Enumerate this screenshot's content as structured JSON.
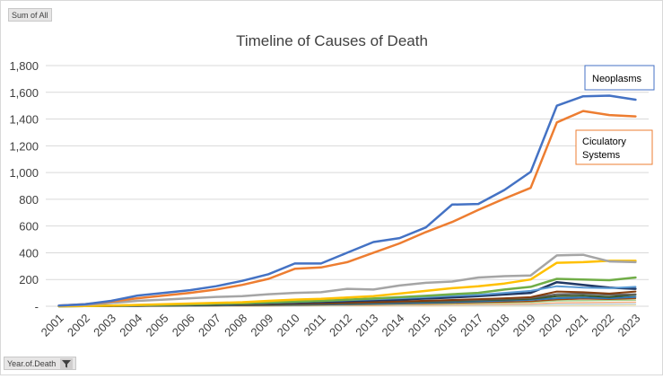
{
  "field_buttons": {
    "values_field": "Sum of All",
    "axis_field": "Year.of.Death"
  },
  "icons": {
    "filter": "filter-icon"
  },
  "colors": {
    "neoplasms": "#4472c4",
    "circulatory": "#ed7d31",
    "gray": "#a5a5a5",
    "yellow": "#ffc000",
    "green": "#70ad47",
    "lightblue": "#5b9bd5",
    "navy": "#203864",
    "brown": "#843c0c",
    "darkgray": "#636363",
    "darkgreen": "#375623",
    "teal": "#2e75b6"
  },
  "chart_data": {
    "type": "line",
    "title": "Timeline of Causes of Death",
    "xlabel": "",
    "ylabel": "",
    "ylim": [
      0,
      1800
    ],
    "ytick_step": 200,
    "ytick_labels": [
      "-",
      "200",
      "400",
      "600",
      "800",
      "1,000",
      "1,200",
      "1,400",
      "1,600",
      "1,800"
    ],
    "grid": true,
    "categories": [
      "2001",
      "2002",
      "2003",
      "2004",
      "2005",
      "2006",
      "2007",
      "2008",
      "2009",
      "2010",
      "2011",
      "2012",
      "2013",
      "2014",
      "2015",
      "2016",
      "2017",
      "2018",
      "2019",
      "2020",
      "2021",
      "2022",
      "2023"
    ],
    "annotations": [
      {
        "text": "Neoplasms",
        "series": "neoplasms"
      },
      {
        "text": "Ciculatory Systems",
        "series": "circulatory"
      }
    ],
    "series": [
      {
        "key": "neoplasms",
        "color": "#4472c4",
        "width": 2.5,
        "values": [
          5,
          15,
          40,
          80,
          100,
          120,
          150,
          190,
          240,
          320,
          320,
          400,
          480,
          510,
          590,
          760,
          765,
          870,
          1005,
          1500,
          1570,
          1575,
          1545
        ]
      },
      {
        "key": "circulatory",
        "color": "#ed7d31",
        "width": 2.5,
        "values": [
          5,
          15,
          35,
          60,
          80,
          100,
          125,
          160,
          205,
          280,
          290,
          330,
          400,
          470,
          555,
          630,
          720,
          805,
          885,
          1375,
          1460,
          1430,
          1420
        ]
      },
      {
        "key": "gray",
        "color": "#a5a5a5",
        "width": 2.5,
        "values": [
          5,
          10,
          25,
          40,
          50,
          60,
          70,
          75,
          90,
          100,
          105,
          130,
          125,
          155,
          175,
          185,
          215,
          225,
          230,
          380,
          385,
          335,
          330
        ]
      },
      {
        "key": "yellow",
        "color": "#ffc000",
        "width": 2.5,
        "values": [
          0,
          2,
          5,
          10,
          15,
          20,
          25,
          30,
          40,
          50,
          55,
          65,
          75,
          95,
          115,
          135,
          150,
          170,
          200,
          325,
          330,
          340,
          340
        ]
      },
      {
        "key": "green",
        "color": "#70ad47",
        "width": 2.5,
        "values": [
          0,
          2,
          5,
          8,
          10,
          14,
          18,
          22,
          28,
          34,
          40,
          50,
          58,
          68,
          78,
          90,
          100,
          125,
          145,
          205,
          200,
          195,
          215
        ]
      },
      {
        "key": "lightblue",
        "color": "#5b9bd5",
        "width": 2,
        "values": [
          0,
          2,
          4,
          7,
          10,
          13,
          17,
          21,
          26,
          32,
          38,
          45,
          52,
          60,
          68,
          78,
          85,
          100,
          115,
          150,
          140,
          135,
          145
        ]
      },
      {
        "key": "navy",
        "color": "#203864",
        "width": 2.5,
        "values": [
          0,
          2,
          4,
          6,
          8,
          11,
          14,
          18,
          22,
          27,
          32,
          38,
          44,
          50,
          58,
          66,
          75,
          88,
          100,
          180,
          160,
          140,
          130
        ]
      },
      {
        "key": "brown",
        "color": "#843c0c",
        "width": 2,
        "values": [
          0,
          1,
          3,
          5,
          7,
          9,
          11,
          14,
          17,
          20,
          23,
          27,
          31,
          36,
          41,
          47,
          53,
          60,
          68,
          110,
          105,
          95,
          110
        ]
      },
      {
        "key": "darkgray",
        "color": "#636363",
        "width": 2,
        "values": [
          0,
          1,
          2,
          4,
          6,
          8,
          10,
          12,
          15,
          18,
          21,
          25,
          29,
          33,
          38,
          43,
          48,
          55,
          62,
          90,
          95,
          85,
          90
        ]
      },
      {
        "key": "darkgreen",
        "color": "#375623",
        "width": 2,
        "values": [
          0,
          1,
          2,
          3,
          5,
          7,
          9,
          11,
          13,
          16,
          19,
          22,
          26,
          30,
          34,
          39,
          44,
          50,
          56,
          75,
          80,
          70,
          85
        ]
      },
      {
        "key": "teal",
        "color": "#2e75b6",
        "width": 2,
        "values": [
          0,
          1,
          2,
          3,
          4,
          5,
          6,
          8,
          10,
          12,
          14,
          17,
          20,
          23,
          27,
          31,
          36,
          42,
          48,
          60,
          65,
          60,
          70
        ]
      },
      {
        "key": "olive",
        "color": "#9e480e",
        "width": 1.5,
        "values": [
          0,
          0,
          1,
          2,
          3,
          4,
          5,
          6,
          7,
          9,
          11,
          13,
          15,
          18,
          21,
          24,
          28,
          32,
          36,
          50,
          55,
          52,
          58
        ]
      },
      {
        "key": "lime",
        "color": "#a9d18e",
        "width": 1.5,
        "values": [
          0,
          0,
          1,
          1,
          2,
          3,
          4,
          5,
          6,
          7,
          8,
          10,
          12,
          14,
          16,
          19,
          22,
          25,
          28,
          40,
          42,
          44,
          46
        ]
      },
      {
        "key": "pale",
        "color": "#f4b183",
        "width": 1.5,
        "values": [
          0,
          0,
          0,
          1,
          1,
          2,
          2,
          3,
          3,
          4,
          5,
          6,
          7,
          8,
          9,
          11,
          13,
          15,
          17,
          25,
          27,
          28,
          30
        ]
      },
      {
        "key": "light",
        "color": "#bdd7ee",
        "width": 1.5,
        "values": [
          0,
          0,
          0,
          0,
          1,
          1,
          1,
          2,
          2,
          2,
          3,
          3,
          4,
          4,
          5,
          6,
          7,
          8,
          9,
          14,
          15,
          16,
          17
        ]
      },
      {
        "key": "gold",
        "color": "#ffe699",
        "width": 1.5,
        "values": [
          0,
          0,
          0,
          0,
          0,
          1,
          1,
          1,
          1,
          2,
          2,
          2,
          2,
          3,
          3,
          3,
          4,
          4,
          5,
          8,
          9,
          9,
          10
        ]
      }
    ]
  }
}
